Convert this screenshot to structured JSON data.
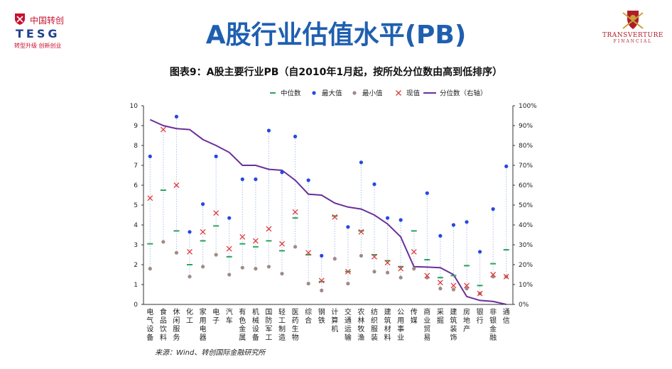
{
  "header": {
    "logo_left_cn": "中国转创",
    "logo_left_en": "TESG",
    "logo_left_slogan": "转型升级 创新创业",
    "title": "A股行业估值水平(PB)",
    "logo_right_name": "TRANSVERTURE",
    "logo_right_sub": "FINANCIAL"
  },
  "colors": {
    "title": "#1f5fb0",
    "median": "#2ca25f",
    "max": "#2648e0",
    "min": "#a08a86",
    "current": "#e03a3a",
    "percentile": "#6a2f9a",
    "range_line": "#a9c1e6"
  },
  "chart_data": {
    "type": "line",
    "title": "图表9：A股主要行业PB（自2010年1月起，按所处分位数由高到低排序）",
    "legend": [
      "中位数",
      "最大值",
      "最小值",
      "现值",
      "分位数（右轴）"
    ],
    "legend_placement": "top",
    "categories": [
      "电气设备",
      "食品饮料",
      "休闲服务",
      "化工",
      "家用电器",
      "电子",
      "汽车",
      "有色金属",
      "机械设备",
      "国防军工",
      "轻工制造",
      "医药生物",
      "综合",
      "钢铁",
      "计算机",
      "交通运输",
      "农林牧渔",
      "纺织服装",
      "建筑材料",
      "公用事业",
      "传媒",
      "商业贸易",
      "采掘",
      "建筑装饰",
      "房地产",
      "银行",
      "非银金融",
      "通信"
    ],
    "y_left": {
      "min": 0,
      "max": 10,
      "ticks": [
        "0",
        "1",
        "2",
        "3",
        "4",
        "5",
        "6",
        "7",
        "8",
        "9",
        "10"
      ]
    },
    "y_right": {
      "min": 0,
      "max": 100,
      "ticks": [
        "0%",
        "10%",
        "20%",
        "30%",
        "40%",
        "50%",
        "60%",
        "70%",
        "80%",
        "90%",
        "100%"
      ]
    },
    "grid": false,
    "series": [
      {
        "name": "中位数",
        "kind": "dash",
        "axis": "left",
        "values": [
          3.05,
          5.75,
          3.7,
          2.0,
          3.2,
          3.95,
          2.4,
          3.05,
          2.9,
          3.2,
          2.7,
          4.35,
          2.5,
          1.15,
          4.45,
          1.65,
          3.7,
          2.5,
          2.2,
          1.9,
          3.7,
          2.25,
          1.35,
          1.45,
          1.95,
          0.95,
          2.05,
          2.75
        ]
      },
      {
        "name": "最大值",
        "kind": "dot",
        "axis": "left",
        "values": [
          7.45,
          null,
          9.45,
          3.65,
          5.05,
          7.45,
          4.35,
          6.3,
          6.3,
          8.75,
          6.65,
          8.45,
          6.25,
          2.45,
          null,
          3.9,
          7.15,
          6.05,
          4.35,
          4.25,
          null,
          5.6,
          3.45,
          4.0,
          4.15,
          2.65,
          4.8,
          6.95
        ]
      },
      {
        "name": "最小值",
        "kind": "dot",
        "axis": "left",
        "values": [
          1.8,
          3.15,
          2.6,
          1.4,
          1.9,
          2.5,
          1.5,
          1.85,
          1.8,
          1.9,
          1.55,
          2.9,
          1.05,
          0.7,
          2.3,
          1.05,
          2.45,
          1.65,
          1.6,
          1.35,
          1.8,
          1.35,
          0.8,
          0.75,
          0.8,
          0.55,
          1.4,
          1.4
        ]
      },
      {
        "name": "现值",
        "kind": "cross",
        "axis": "left",
        "values": [
          5.35,
          8.8,
          6.0,
          2.65,
          3.65,
          4.6,
          2.8,
          3.4,
          3.2,
          3.8,
          3.05,
          4.65,
          2.6,
          1.2,
          4.4,
          1.65,
          3.65,
          2.4,
          2.1,
          1.8,
          2.65,
          1.45,
          1.1,
          0.95,
          0.95,
          0.55,
          1.5,
          1.4
        ]
      },
      {
        "name": "分位数（右轴）",
        "kind": "line",
        "axis": "right",
        "values": [
          93,
          90,
          88.5,
          88,
          83,
          80,
          76.5,
          70,
          70,
          68,
          67.5,
          62.5,
          55.5,
          55,
          51,
          49,
          48,
          45,
          40.5,
          34,
          19,
          18.8,
          18.5,
          15,
          4,
          2,
          1.5,
          0
        ]
      }
    ]
  },
  "source": "来源：Wind、转创国际金融研究所"
}
